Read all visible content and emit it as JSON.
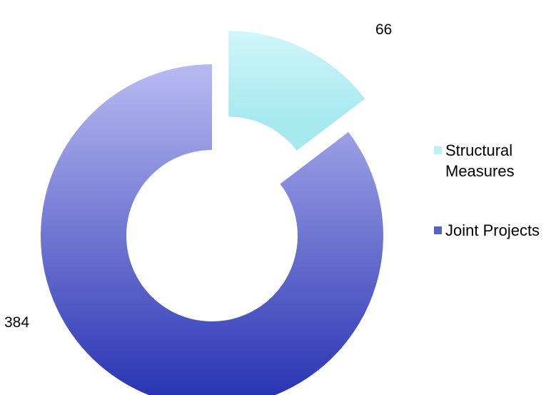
{
  "chart_data": {
    "type": "pie",
    "variant": "doughnut",
    "title": "",
    "categories": [
      "Structural Measures",
      "Joint Projects"
    ],
    "values": [
      66,
      384
    ],
    "data_labels": [
      "66",
      "384"
    ],
    "exploded": [
      "Structural Measures"
    ],
    "legend_position": "right",
    "colors": {
      "Structural Measures": {
        "light": "#dcfbfd",
        "dark": "#9ee6ee"
      },
      "Joint Projects": {
        "light": "#b3b6f0",
        "dark": "#2a35b3"
      }
    },
    "legend_swatch_colors": [
      "#bdf0f4",
      "#5a62c8"
    ]
  }
}
